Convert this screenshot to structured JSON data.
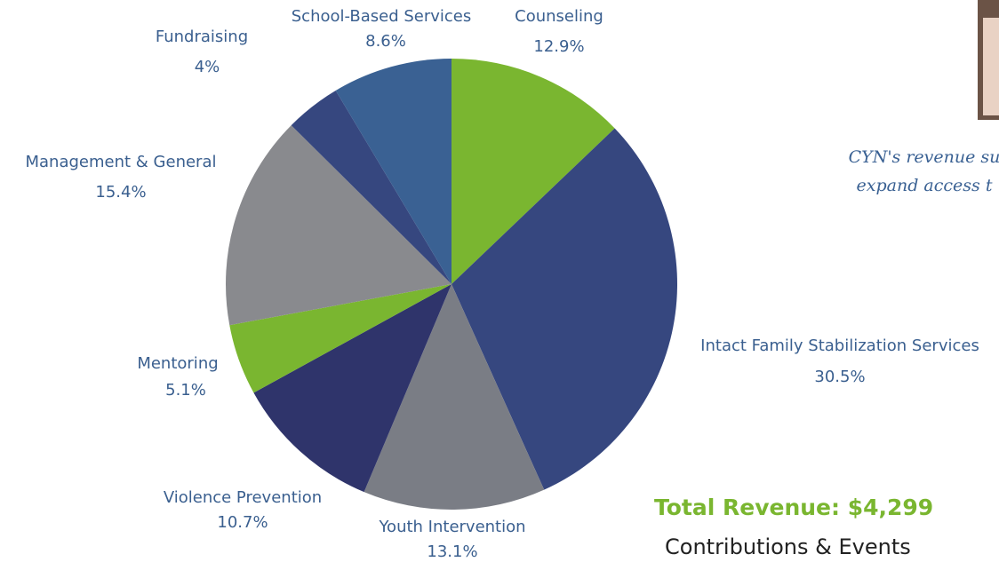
{
  "chart_data": {
    "type": "pie",
    "categories": [
      "Counseling",
      "Intact Family Stabilization Services",
      "Youth Intervention",
      "Violence Prevention",
      "Mentoring",
      "Management & General",
      "Fundraising",
      "School-Based Services"
    ],
    "values": [
      12.9,
      30.5,
      13.1,
      10.7,
      5.1,
      15.4,
      4,
      8.6
    ],
    "value_labels": [
      "12.9%",
      "30.5%",
      "13.1%",
      "10.7%",
      "5.1%",
      "15.4%",
      "4%",
      "8.6%"
    ],
    "colors": [
      "#7ab630",
      "#36477f",
      "#7a7d85",
      "#2f346b",
      "#7ab630",
      "#898a8e",
      "#36477f",
      "#3a6193"
    ],
    "annotations": [
      "CYN's revenue su",
      "expand access t"
    ],
    "total_label": "Total Revenue: $4,299",
    "subtitle": "Contributions & Events"
  }
}
